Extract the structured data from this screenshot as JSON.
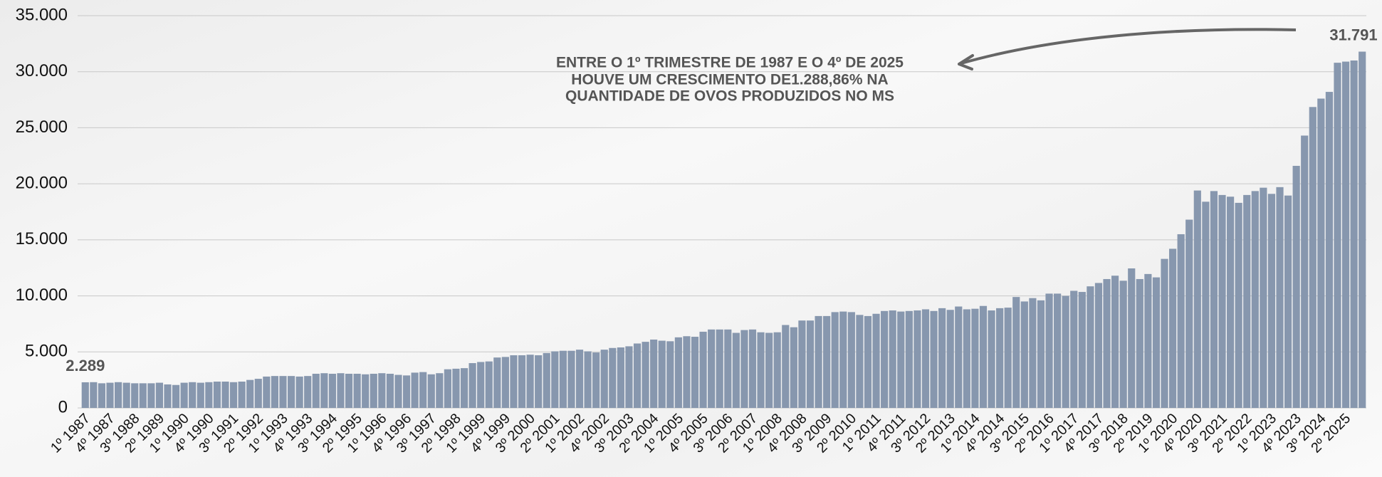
{
  "chart_data": {
    "type": "bar",
    "annotation": [
      "ENTRE O 1º TRIMESTRE DE 1987 E O 4º DE 2025",
      "HOUVE UM CRESCIMENTO DE1.288,86% NA",
      "QUANTIDADE DE OVOS PRODUZIDOS NO MS"
    ],
    "color": "#8797ae",
    "grid": true,
    "ylim": [
      0,
      35000
    ],
    "yticks": [
      0,
      {
        "value": 5000,
        "label": "5.000"
      },
      {
        "value": 10000,
        "label": "10.000"
      },
      {
        "value": 15000,
        "label": "15.000"
      },
      {
        "value": 20000,
        "label": "20.000"
      },
      {
        "value": 25000,
        "label": "25.000"
      },
      {
        "value": 30000,
        "label": "30.000"
      },
      {
        "value": 35000,
        "label": "35.000"
      }
    ],
    "categories": [
      "1º 1987",
      null,
      null,
      "4º 1987",
      null,
      null,
      "3º 1988",
      null,
      null,
      "2º 1989",
      null,
      null,
      "1º 1990",
      null,
      null,
      "4º 1990",
      null,
      null,
      "3º 1991",
      null,
      null,
      "2º 1992",
      null,
      null,
      "1º 1993",
      null,
      null,
      "4º 1993",
      null,
      null,
      "3º 1994",
      null,
      null,
      "2º 1995",
      null,
      null,
      "1º 1996",
      null,
      null,
      "4º 1996",
      null,
      null,
      "3º 1997",
      null,
      null,
      "2º 1998",
      null,
      null,
      "1º 1999",
      null,
      null,
      "4º 1999",
      null,
      null,
      "3º 2000",
      null,
      null,
      "2º 2001",
      null,
      null,
      "1º 2002",
      null,
      null,
      "4º 2002",
      null,
      null,
      "3º 2003",
      null,
      null,
      "2º 2004",
      null,
      null,
      "1º 2005",
      null,
      null,
      "4º 2005",
      null,
      null,
      "3º 2006",
      null,
      null,
      "2º 2007",
      null,
      null,
      "1º 2008",
      null,
      null,
      "4º 2008",
      null,
      null,
      "3º 2009",
      null,
      null,
      "2º 2010",
      null,
      null,
      "1º 2011",
      null,
      null,
      "4º 2011",
      null,
      null,
      "3º 2012",
      null,
      null,
      "2º 2013",
      null,
      null,
      "1º 2014",
      null,
      null,
      "4º 2014",
      null,
      null,
      "3º 2015",
      null,
      null,
      "2º 2016",
      null,
      null,
      "1º 2017",
      null,
      null,
      "4º 2017",
      null,
      null,
      "3º 2018",
      null,
      null,
      "2º 2019",
      null,
      null,
      "1º 2020",
      null,
      null,
      "4º 2020",
      null,
      null,
      "3º 2021",
      null,
      null,
      "2º 2022",
      null,
      null,
      "1º 2023",
      null,
      null,
      "4º 2023",
      null,
      null,
      "3º 2024",
      null,
      null,
      "2º 2025",
      null,
      null
    ],
    "values": [
      2289,
      2300,
      2200,
      2250,
      2300,
      2250,
      2200,
      2200,
      2200,
      2250,
      2100,
      2050,
      2250,
      2300,
      2250,
      2300,
      2350,
      2350,
      2300,
      2350,
      2500,
      2600,
      2800,
      2850,
      2850,
      2850,
      2800,
      2850,
      3050,
      3100,
      3050,
      3100,
      3050,
      3050,
      3000,
      3050,
      3100,
      3050,
      2950,
      2900,
      3150,
      3200,
      3000,
      3100,
      3450,
      3500,
      3550,
      4000,
      4100,
      4150,
      4500,
      4550,
      4700,
      4700,
      4750,
      4700,
      4900,
      5050,
      5100,
      5100,
      5200,
      5050,
      4950,
      5200,
      5350,
      5400,
      5500,
      5750,
      5900,
      6100,
      6000,
      5950,
      6300,
      6400,
      6350,
      6800,
      7000,
      7000,
      7000,
      6700,
      6950,
      7000,
      6750,
      6700,
      6750,
      7400,
      7200,
      7800,
      7800,
      8200,
      8200,
      8550,
      8600,
      8550,
      8300,
      8200,
      8400,
      8650,
      8700,
      8600,
      8650,
      8700,
      8800,
      8650,
      8900,
      8750,
      9050,
      8800,
      8850,
      9100,
      8700,
      8900,
      8950,
      9900,
      9500,
      9800,
      9600,
      10200,
      10200,
      10000,
      10450,
      10350,
      10850,
      11150,
      11500,
      11800,
      11350,
      12450,
      11500,
      11950,
      11650,
      13300,
      14200,
      15500,
      16800,
      19400,
      18400,
      19350,
      19000,
      18850,
      18300,
      19000,
      19350,
      19650,
      19100,
      19700,
      18950,
      21600,
      24300,
      26850,
      27600,
      28200,
      30800,
      30900,
      31000,
      31791
    ],
    "value_labels": [
      "2.289",
      null,
      null,
      null,
      null,
      null,
      null,
      null,
      null,
      null,
      null,
      null,
      null,
      null,
      null,
      null,
      null,
      null,
      null,
      null,
      null,
      null,
      null,
      null,
      null,
      null,
      null,
      null,
      null,
      null,
      null,
      null,
      null,
      null,
      null,
      null,
      null,
      null,
      null,
      null,
      null,
      null,
      null,
      null,
      null,
      null,
      null,
      null,
      null,
      null,
      null,
      null,
      null,
      null,
      null,
      null,
      null,
      null,
      null,
      null,
      null,
      null,
      null,
      null,
      null,
      null,
      null,
      null,
      null,
      null,
      null,
      null,
      null,
      null,
      null,
      null,
      null,
      null,
      null,
      null,
      null,
      null,
      null,
      null,
      null,
      null,
      null,
      null,
      null,
      null,
      null,
      null,
      null,
      null,
      null,
      null,
      null,
      null,
      null,
      null,
      null,
      null,
      null,
      null,
      null,
      null,
      null,
      null,
      null,
      null,
      null,
      null,
      null,
      null,
      null,
      null,
      null,
      null,
      null,
      null,
      null,
      null,
      null,
      null,
      null,
      null,
      null,
      null,
      null,
      null,
      null,
      null,
      null,
      null,
      null,
      null,
      null,
      null,
      null,
      null,
      null,
      null,
      null,
      null,
      null,
      null,
      null,
      null,
      null,
      null,
      null,
      null,
      null,
      null,
      null,
      "31.791"
    ]
  }
}
